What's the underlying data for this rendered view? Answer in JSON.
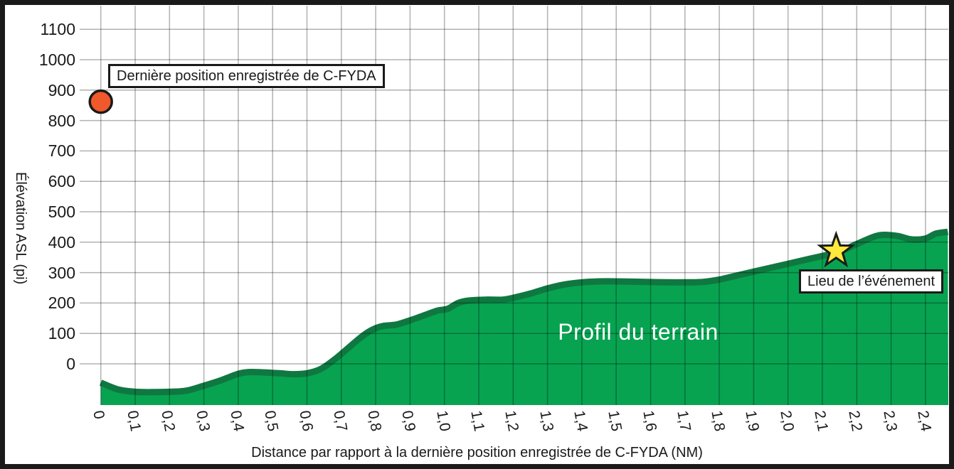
{
  "chart_data": {
    "type": "area",
    "title": "",
    "xlabel": "Distance par rapport à la dernière position enregistrée de C-FYDA (NM)",
    "ylabel": "Élévation ASL (pi)",
    "xlim": [
      0,
      2.465
    ],
    "ylim": [
      -135,
      1180
    ],
    "grid": true,
    "x_ticks": [
      {
        "value": 0.0,
        "label": "0"
      },
      {
        "value": 0.1,
        "label": "0,1"
      },
      {
        "value": 0.2,
        "label": "0,2"
      },
      {
        "value": 0.3,
        "label": "0,3"
      },
      {
        "value": 0.4,
        "label": "0,4"
      },
      {
        "value": 0.5,
        "label": "0,5"
      },
      {
        "value": 0.6,
        "label": "0,6"
      },
      {
        "value": 0.7,
        "label": "0,7"
      },
      {
        "value": 0.8,
        "label": "0,8"
      },
      {
        "value": 0.9,
        "label": "0,9"
      },
      {
        "value": 1.0,
        "label": "1,0"
      },
      {
        "value": 1.1,
        "label": "1,1"
      },
      {
        "value": 1.2,
        "label": "1,2"
      },
      {
        "value": 1.3,
        "label": "1,3"
      },
      {
        "value": 1.4,
        "label": "1,4"
      },
      {
        "value": 1.5,
        "label": "1,5"
      },
      {
        "value": 1.6,
        "label": "1,6"
      },
      {
        "value": 1.7,
        "label": "1,7"
      },
      {
        "value": 1.8,
        "label": "1,8"
      },
      {
        "value": 1.9,
        "label": "1,9"
      },
      {
        "value": 2.0,
        "label": "2,0"
      },
      {
        "value": 2.1,
        "label": "2,1"
      },
      {
        "value": 2.2,
        "label": "2,2"
      },
      {
        "value": 2.3,
        "label": "2,3"
      },
      {
        "value": 2.4,
        "label": "2,4"
      }
    ],
    "y_ticks": [
      {
        "value": 0,
        "label": "0"
      },
      {
        "value": 100,
        "label": "100"
      },
      {
        "value": 200,
        "label": "200"
      },
      {
        "value": 300,
        "label": "300"
      },
      {
        "value": 400,
        "label": "400"
      },
      {
        "value": 500,
        "label": "500"
      },
      {
        "value": 600,
        "label": "600"
      },
      {
        "value": 700,
        "label": "700"
      },
      {
        "value": 800,
        "label": "800"
      },
      {
        "value": 900,
        "label": "900"
      },
      {
        "value": 1000,
        "label": "1000"
      },
      {
        "value": 1100,
        "label": "1100"
      }
    ],
    "series": [
      {
        "name": "terrain-profile",
        "label": "Profil du terrain",
        "fill_color": "#07A351",
        "line_color": "#0F7840",
        "points": [
          [
            0.0,
            -62
          ],
          [
            0.05,
            -84
          ],
          [
            0.1,
            -92
          ],
          [
            0.15,
            -93
          ],
          [
            0.2,
            -92
          ],
          [
            0.25,
            -88
          ],
          [
            0.3,
            -72
          ],
          [
            0.35,
            -54
          ],
          [
            0.4,
            -33
          ],
          [
            0.43,
            -27
          ],
          [
            0.47,
            -28
          ],
          [
            0.52,
            -31
          ],
          [
            0.56,
            -34
          ],
          [
            0.6,
            -31
          ],
          [
            0.64,
            -17
          ],
          [
            0.68,
            14
          ],
          [
            0.72,
            52
          ],
          [
            0.76,
            90
          ],
          [
            0.79,
            112
          ],
          [
            0.82,
            124
          ],
          [
            0.86,
            129
          ],
          [
            0.9,
            143
          ],
          [
            0.95,
            163
          ],
          [
            0.98,
            175
          ],
          [
            1.01,
            181
          ],
          [
            1.04,
            200
          ],
          [
            1.07,
            208
          ],
          [
            1.12,
            211
          ],
          [
            1.17,
            211
          ],
          [
            1.2,
            217
          ],
          [
            1.25,
            231
          ],
          [
            1.3,
            248
          ],
          [
            1.35,
            261
          ],
          [
            1.4,
            268
          ],
          [
            1.45,
            271
          ],
          [
            1.5,
            271
          ],
          [
            1.55,
            270
          ],
          [
            1.6,
            269
          ],
          [
            1.65,
            268
          ],
          [
            1.7,
            268
          ],
          [
            1.75,
            269
          ],
          [
            1.8,
            277
          ],
          [
            1.85,
            290
          ],
          [
            1.9,
            303
          ],
          [
            1.95,
            316
          ],
          [
            2.0,
            329
          ],
          [
            2.05,
            342
          ],
          [
            2.1,
            355
          ],
          [
            2.15,
            369
          ],
          [
            2.2,
            394
          ],
          [
            2.25,
            418
          ],
          [
            2.28,
            424
          ],
          [
            2.32,
            420
          ],
          [
            2.36,
            409
          ],
          [
            2.4,
            412
          ],
          [
            2.43,
            428
          ],
          [
            2.465,
            434
          ]
        ]
      }
    ],
    "annotations": [
      {
        "id": "last-recorded-position",
        "label": "Dernière position enregistrée de C-FYDA",
        "marker": "circle",
        "marker_color": "#F0592B",
        "x_nm": 0,
        "y_ft": 862
      },
      {
        "id": "event-location",
        "label": "Lieu de l’événement",
        "marker": "star",
        "marker_color": "#FFE93B",
        "x_nm": 2.14,
        "y_ft": 371
      }
    ]
  },
  "colors": {
    "background": "#ffffff",
    "frame": "#1a1a1a",
    "grid": "rgba(0,0,0,0.30)",
    "marker_outline": "#1a1a1a"
  }
}
